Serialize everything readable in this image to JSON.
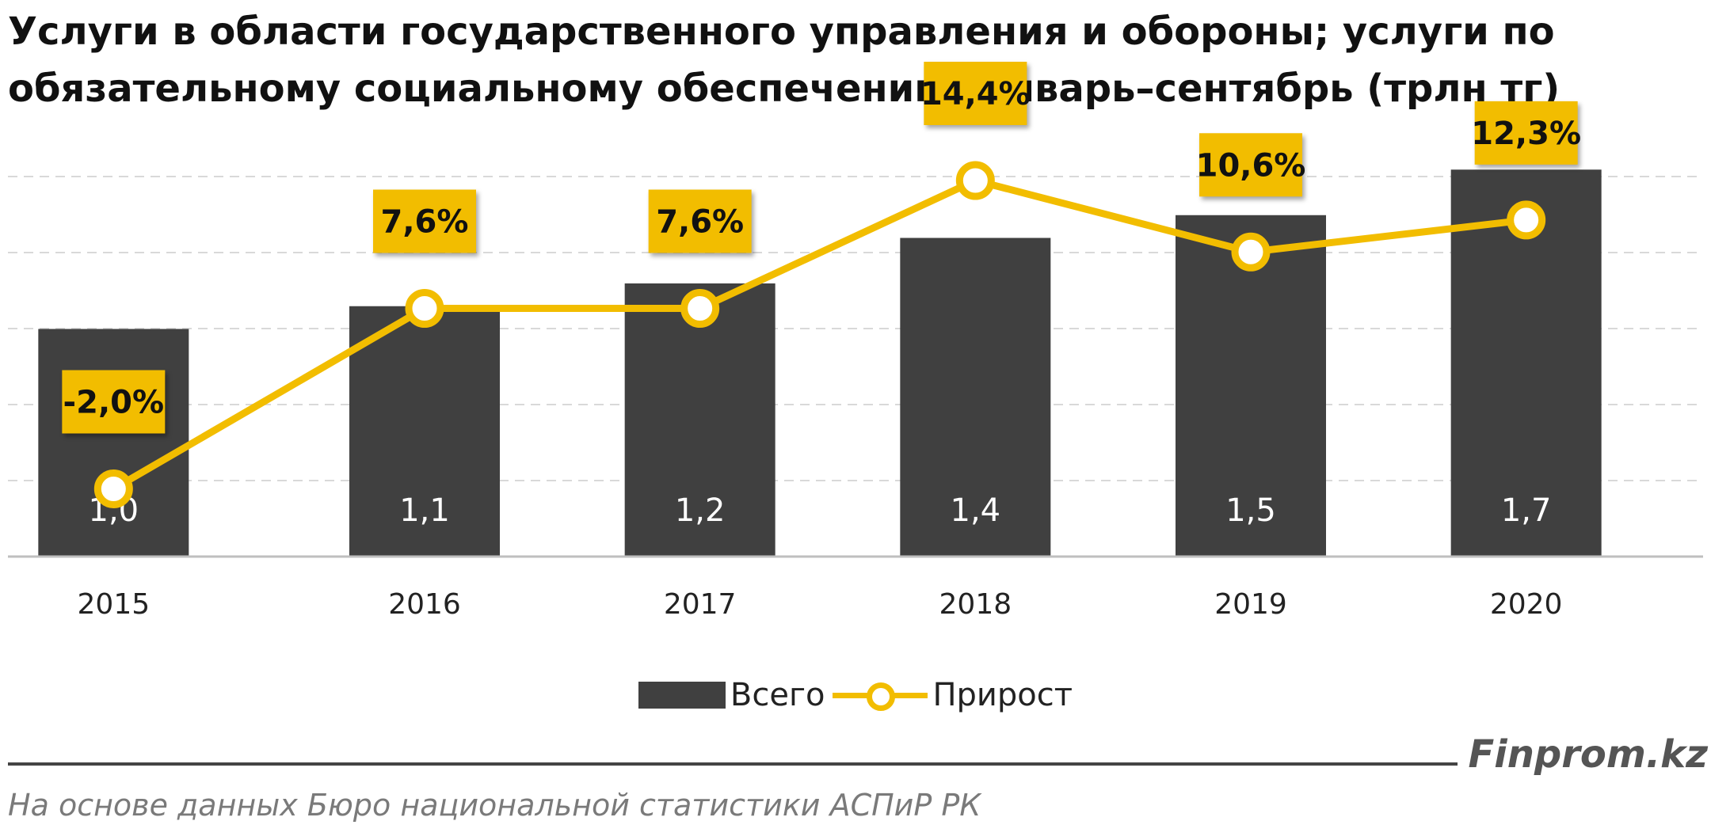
{
  "title_lines": [
    "Услуги в области государственного управления и обороны; услуги по",
    "обязательному социальному обеспечению. Январь–сентябрь (трлн тг)"
  ],
  "chart_data": {
    "type": "bar",
    "title": "Услуги в области государственного управления и обороны; услуги по обязательному социальному обеспечению. Январь–сентябрь (трлн тг)",
    "categories": [
      "2015",
      "2016",
      "2017",
      "2018",
      "2019",
      "2020"
    ],
    "series": [
      {
        "name": "Всего",
        "type": "bar",
        "values": [
          1.0,
          1.1,
          1.2,
          1.4,
          1.5,
          1.7
        ],
        "labels": [
          "1,0",
          "1,1",
          "1,2",
          "1,4",
          "1,5",
          "1,7"
        ],
        "color": "#404040"
      },
      {
        "name": "Прирост",
        "type": "line",
        "values": [
          -2.0,
          7.6,
          7.6,
          14.4,
          10.6,
          12.3
        ],
        "labels": [
          "-2,0%",
          "7,6%",
          "7,6%",
          "14,4%",
          "10,6%",
          "12,3%"
        ],
        "color": "#f2bd00"
      }
    ],
    "xlabel": "",
    "ylabel": "",
    "ylim_bars": [
      0,
      2
    ],
    "ylim_line": [
      -6,
      20
    ],
    "grid": true,
    "legend": "bottom-center",
    "colors": {
      "bar": "#404040",
      "line": "#f2bd00",
      "label_box": "#f2bd00",
      "gridline": "#d9d9d9",
      "axis": "#bfbfbf"
    }
  },
  "legend": {
    "bar_label": "Всего",
    "line_label": "Прирост"
  },
  "brand": "Finprom.kz",
  "source": "На основе данных  Бюро национальной  статистики АСПиР РК"
}
